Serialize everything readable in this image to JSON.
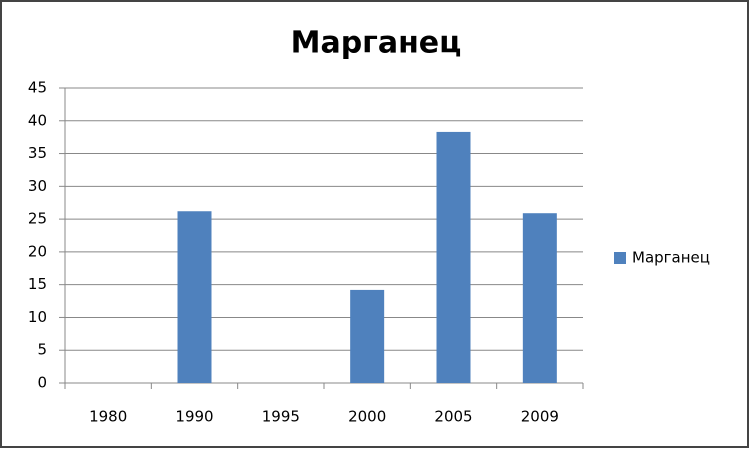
{
  "chart_data": {
    "type": "bar",
    "title": "Марганец",
    "categories": [
      "1980",
      "1990",
      "1995",
      "2000",
      "2005",
      "2009"
    ],
    "series": [
      {
        "name": "Марганец",
        "color": "#4f81bd",
        "values": [
          null,
          26.2,
          null,
          14.2,
          38.3,
          25.9
        ]
      }
    ],
    "ylim": [
      0,
      45
    ],
    "yticks": [
      0,
      5,
      10,
      15,
      20,
      25,
      30,
      35,
      40,
      45
    ],
    "grid": true,
    "legend": "right"
  }
}
